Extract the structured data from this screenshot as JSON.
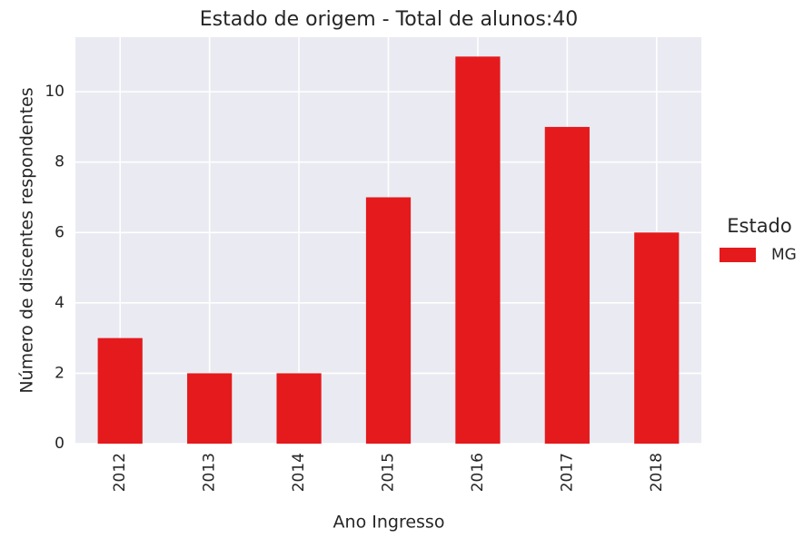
{
  "chart_data": {
    "type": "bar",
    "title": "Estado de origem - Total de alunos:40",
    "x_label": "Ano Ingresso",
    "y_label": "Número de discentes respondentes",
    "categories": [
      "2012",
      "2013",
      "2014",
      "2015",
      "2016",
      "2017",
      "2018"
    ],
    "series": [
      {
        "name": "MG",
        "color": "#e41a1c",
        "values": [
          3,
          2,
          2,
          7,
          11,
          9,
          6
        ]
      }
    ],
    "legend_title": "Estado",
    "legend": "right",
    "ylim": [
      0,
      11.55
    ],
    "yticks": [
      0,
      2,
      4,
      6,
      8,
      10
    ],
    "grid": true
  }
}
